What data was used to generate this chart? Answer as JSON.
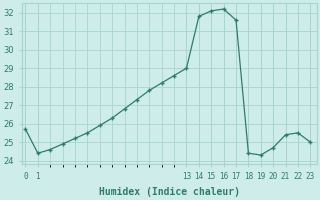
{
  "x": [
    0,
    1,
    2,
    3,
    4,
    5,
    6,
    7,
    8,
    9,
    10,
    11,
    12,
    13,
    14,
    15,
    16,
    17,
    18,
    19,
    20,
    21,
    22,
    23
  ],
  "y": [
    25.7,
    24.4,
    24.6,
    24.9,
    25.2,
    25.5,
    25.9,
    26.3,
    26.8,
    27.3,
    27.8,
    28.2,
    28.6,
    29.0,
    31.8,
    32.1,
    32.2,
    31.6,
    24.4,
    24.3,
    24.7,
    25.4,
    25.5,
    25.0
  ],
  "line_color": "#2d7d6d",
  "marker_color": "#2d7d6d",
  "bg_color": "#cdecea",
  "grid_color": "#a8d5d0",
  "xlabel": "Humidex (Indice chaleur)",
  "ylim": [
    23.8,
    32.5
  ],
  "yticks": [
    24,
    25,
    26,
    27,
    28,
    29,
    30,
    31,
    32
  ],
  "xticks": [
    0,
    1,
    13,
    14,
    15,
    16,
    17,
    18,
    19,
    20,
    21,
    22,
    23
  ],
  "xlim": [
    -0.3,
    23.5
  ],
  "font_color": "#2d7d6d"
}
